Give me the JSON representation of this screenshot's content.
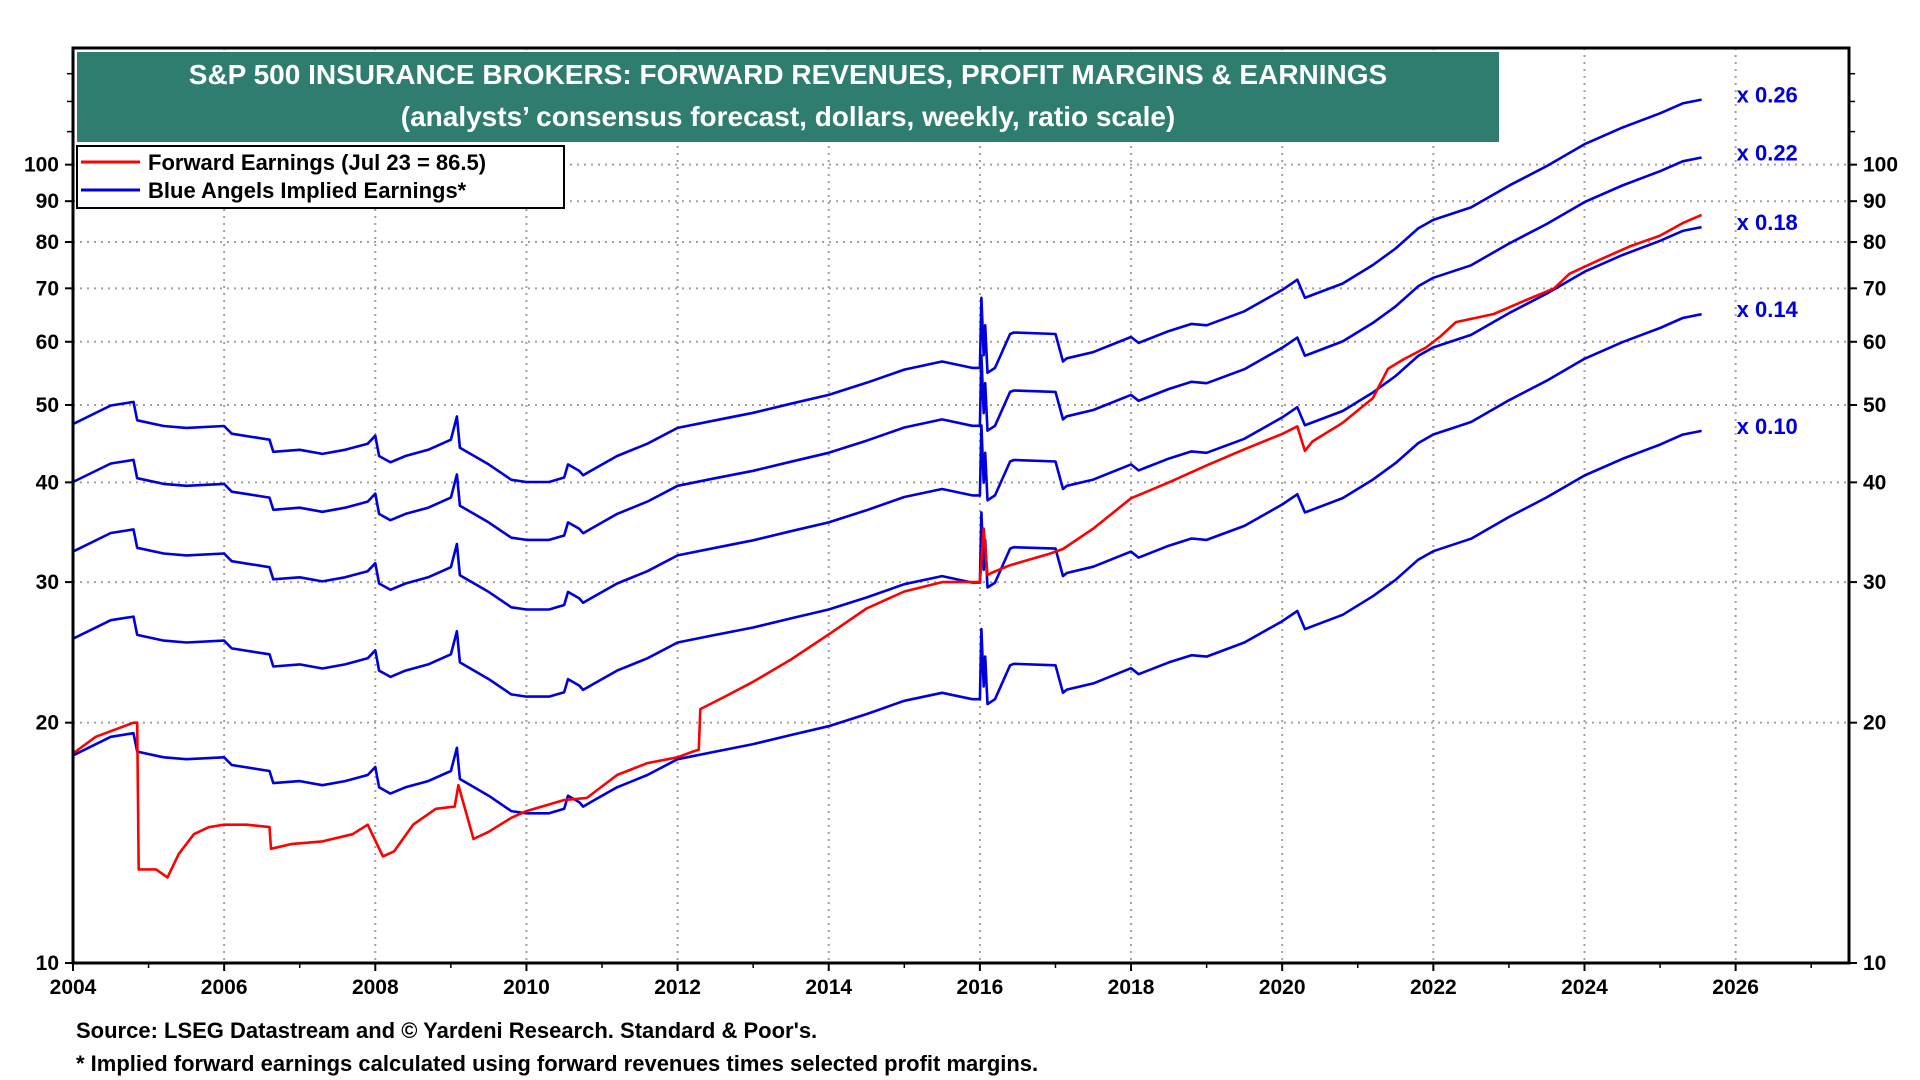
{
  "colors": {
    "title_bg": "#2e7d6e",
    "forward_earnings": "#ff0000",
    "implied_earnings": "#0000dd",
    "margin_label": "#0000dd",
    "grid": "#a0a0a0"
  },
  "notes": {
    "source": "Source: LSEG Datastream and © Yardeni Research. Standard & Poor's.",
    "footnote": "* Implied forward earnings calculated using forward revenues times selected profit margins."
  },
  "chart_data": {
    "type": "line",
    "title": "S&P 500 INSURANCE BROKERS: FORWARD REVENUES, PROFIT MARGINS & EARNINGS",
    "subtitle": "(analysts’ consensus forecast, dollars, weekly, ratio scale)",
    "xlabel": "",
    "ylabel": "",
    "y_scale": "log",
    "ylim": [
      10,
      140
    ],
    "xlim": [
      2004,
      2027.5
    ],
    "grid": true,
    "legend_position": "top-left",
    "x_ticks": [
      "2004",
      "2006",
      "2008",
      "2010",
      "2012",
      "2014",
      "2016",
      "2018",
      "2020",
      "2022",
      "2024",
      "2026"
    ],
    "y_ticks": [
      "10",
      "20",
      "30",
      "40",
      "50",
      "60",
      "70",
      "80",
      "90",
      "100"
    ],
    "x_tick_values": [
      2004,
      2006,
      2008,
      2010,
      2012,
      2014,
      2016,
      2018,
      2020,
      2022,
      2024,
      2026
    ],
    "y_tick_values": [
      10,
      20,
      30,
      40,
      50,
      60,
      70,
      80,
      90,
      100
    ],
    "legend": [
      {
        "label": "Forward Earnings (Jul 23 = 86.5)",
        "series": "forward"
      },
      {
        "label": "Blue Angels Implied Earnings*",
        "series": "implied"
      }
    ],
    "forward_earnings": {
      "x": [
        2004.0,
        2004.3,
        2004.8,
        2004.85,
        2004.87,
        2005.1,
        2005.25,
        2005.4,
        2005.6,
        2005.8,
        2006.0,
        2006.3,
        2006.6,
        2006.62,
        2006.9,
        2007.3,
        2007.7,
        2007.9,
        2008.1,
        2008.25,
        2008.5,
        2008.8,
        2009.05,
        2009.1,
        2009.3,
        2009.5,
        2009.8,
        2010.0,
        2010.5,
        2010.8,
        2011.2,
        2011.6,
        2012.0,
        2012.2,
        2012.28,
        2012.3,
        2012.6,
        2013.0,
        2013.5,
        2014.0,
        2014.5,
        2015.0,
        2015.5,
        2016.0,
        2016.05,
        2016.1,
        2016.15,
        2016.4,
        2016.9,
        2017.1,
        2017.5,
        2018.0,
        2018.5,
        2019.0,
        2019.5,
        2020.0,
        2020.2,
        2020.3,
        2020.4,
        2020.8,
        2021.2,
        2021.4,
        2021.6,
        2021.9,
        2022.1,
        2022.3,
        2022.8,
        2023.2,
        2023.6,
        2023.8,
        2024.2,
        2024.6,
        2025.0,
        2025.3,
        2025.55
      ],
      "values": [
        18.3,
        19.2,
        20.0,
        20.0,
        13.1,
        13.1,
        12.8,
        13.7,
        14.5,
        14.8,
        14.9,
        14.9,
        14.8,
        13.9,
        14.1,
        14.2,
        14.5,
        14.9,
        13.6,
        13.8,
        14.9,
        15.6,
        15.7,
        16.7,
        14.3,
        14.6,
        15.2,
        15.5,
        16.0,
        16.1,
        17.2,
        17.8,
        18.1,
        18.4,
        18.5,
        20.8,
        21.5,
        22.5,
        24.0,
        25.8,
        27.8,
        29.2,
        30.0,
        30.0,
        35.0,
        30.6,
        30.8,
        31.5,
        32.5,
        33.0,
        35.0,
        38.2,
        40.0,
        42.0,
        44.0,
        46.0,
        47.0,
        43.8,
        45.0,
        47.5,
        51.0,
        55.5,
        57.0,
        59.0,
        61.0,
        63.5,
        65.0,
        67.5,
        70.0,
        73.0,
        76.0,
        79.0,
        81.5,
        84.5,
        86.5
      ]
    },
    "implied_earnings": {
      "x": [
        2004.0,
        2004.5,
        2004.8,
        2004.85,
        2005.2,
        2005.5,
        2006.0,
        2006.1,
        2006.6,
        2006.65,
        2007.0,
        2007.3,
        2007.6,
        2007.9,
        2008.0,
        2008.05,
        2008.2,
        2008.4,
        2008.7,
        2009.0,
        2009.08,
        2009.12,
        2009.5,
        2009.8,
        2010.0,
        2010.3,
        2010.5,
        2010.55,
        2010.7,
        2010.75,
        2010.9,
        2011.2,
        2011.6,
        2012.0,
        2012.5,
        2013.0,
        2013.5,
        2014.0,
        2014.5,
        2015.0,
        2015.5,
        2015.9,
        2016.0,
        2016.02,
        2016.05,
        2016.07,
        2016.1,
        2016.2,
        2016.4,
        2016.45,
        2017.0,
        2017.1,
        2017.15,
        2017.5,
        2018.0,
        2018.1,
        2018.5,
        2018.8,
        2019.0,
        2019.5,
        2020.0,
        2020.2,
        2020.3,
        2020.35,
        2020.8,
        2021.2,
        2021.5,
        2021.8,
        2022.0,
        2022.5,
        2023.0,
        2023.5,
        2024.0,
        2024.5,
        2025.0,
        2025.3,
        2025.55
      ],
      "revenue": [
        182,
        192,
        194,
        184,
        181,
        180,
        181,
        177,
        174,
        168,
        169,
        167,
        169,
        172,
        176,
        166,
        163,
        166,
        169,
        174,
        186,
        170,
        162,
        155,
        154,
        154,
        156,
        162,
        159,
        157,
        160,
        166,
        172,
        180,
        184,
        188,
        193,
        198,
        205,
        213,
        218,
        214,
        214,
        262,
        222,
        242,
        211,
        214,
        236,
        237,
        236,
        218,
        220,
        224,
        234,
        230,
        238,
        243,
        242,
        252,
        268,
        276,
        262,
        263,
        273,
        288,
        302,
        320,
        328,
        340,
        362,
        383,
        408,
        428,
        446,
        459,
        464
      ],
      "margins": [
        0.26,
        0.22,
        0.18,
        0.14,
        0.1
      ],
      "margin_labels": [
        "x 0.26",
        "x 0.22",
        "x 0.18",
        "x 0.14",
        "x 0.10"
      ]
    }
  }
}
